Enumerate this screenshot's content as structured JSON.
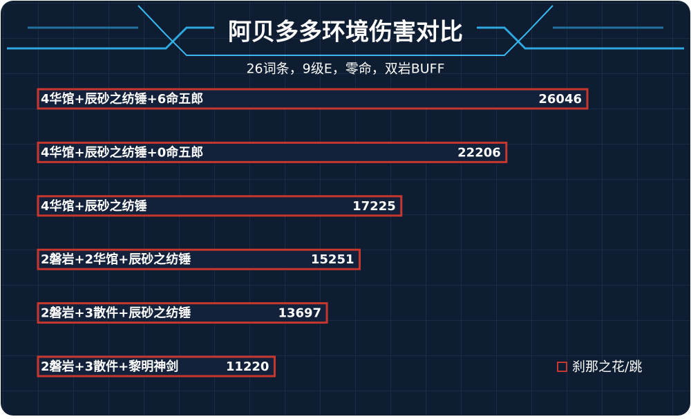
{
  "chart_data": {
    "type": "bar",
    "orientation": "horizontal",
    "title": "阿贝多多环境伤害对比",
    "subtitle": "26词条，9级E，零命，双岩BUFF",
    "categories": [
      "4华馆+辰砂之纺锤+6命五郎",
      "4华馆+辰砂之纺锤+0命五郎",
      "4华馆+辰砂之纺锤",
      "2磐岩+2华馆+辰砂之纺锤",
      "2磐岩+3散件+辰砂之纺锤",
      "2磐岩+3散件+黎明神剑"
    ],
    "values": [
      26046,
      22206,
      17225,
      15251,
      13697,
      11220
    ],
    "color": "#c8372d",
    "watermark": "刹那之花/跳"
  }
}
